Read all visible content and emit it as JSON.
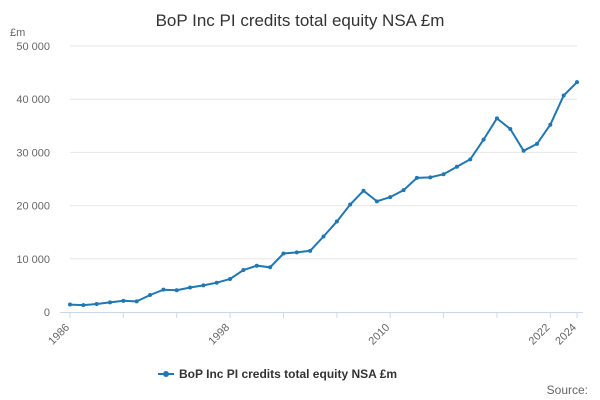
{
  "chart_data": {
    "type": "line",
    "title": "BoP Inc PI credits total equity NSA £m",
    "ylabel": "£m",
    "xlabel": "",
    "source_label": "Source:",
    "ylim": [
      0,
      50000
    ],
    "xlim": [
      1986,
      2024
    ],
    "yticks": [
      0,
      10000,
      20000,
      30000,
      40000,
      50000
    ],
    "ytick_labels": [
      "0",
      "10 000",
      "20 000",
      "30 000",
      "40 000",
      "50 000"
    ],
    "xticks": [
      1986,
      1998,
      2010,
      2022,
      2024
    ],
    "xtick_labels": [
      "1986",
      "1998",
      "2010",
      "2022",
      "2024"
    ],
    "grid": true,
    "legend": "bottom-center",
    "colors": {
      "series": "#1f77b4"
    },
    "series": [
      {
        "name": "BoP Inc PI credits total equity NSA £m",
        "x": [
          1986,
          1987,
          1988,
          1989,
          1990,
          1991,
          1992,
          1993,
          1994,
          1995,
          1996,
          1997,
          1998,
          1999,
          2000,
          2001,
          2002,
          2003,
          2004,
          2005,
          2006,
          2007,
          2008,
          2009,
          2010,
          2011,
          2012,
          2013,
          2014,
          2015,
          2016,
          2017,
          2018,
          2019,
          2020,
          2021,
          2022,
          2023,
          2024
        ],
        "values": [
          1400,
          1300,
          1500,
          1800,
          2100,
          2000,
          3200,
          4200,
          4100,
          4600,
          5000,
          5500,
          6200,
          7900,
          8700,
          8400,
          11000,
          11200,
          11500,
          14200,
          17000,
          20200,
          22800,
          20800,
          21600,
          22900,
          25200,
          25300,
          25900,
          27300,
          28700,
          32400,
          36400,
          34400,
          30300,
          31600,
          35200,
          40700,
          43200
        ]
      }
    ]
  }
}
